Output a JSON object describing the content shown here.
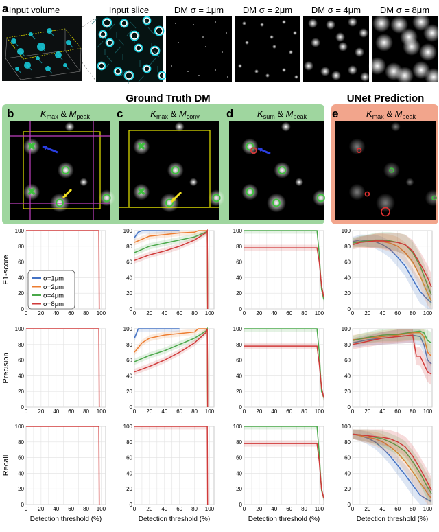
{
  "figure": {
    "label_a": "a",
    "top_labels": [
      "Input volume",
      "Input slice",
      "DM σ = 1μm",
      "DM σ = 2μm",
      "DM σ = 4μm",
      "DM σ = 8μm"
    ],
    "group_gt": "Ground Truth DM",
    "group_unet": "UNet Prediction",
    "colors": {
      "sigma1": "#4472c4",
      "sigma2": "#ed7d31",
      "sigma4": "#4aa84a",
      "sigma8": "#d03a3a",
      "gt_panel_bg": "#9fd69f",
      "unet_panel_bg": "#f2a58c",
      "cyan": "#18d0e0"
    },
    "panels": [
      {
        "letter": "b",
        "k": "K",
        "k_sub": "max",
        "amp": " & ",
        "m": "M",
        "m_sub": "peak"
      },
      {
        "letter": "c",
        "k": "K",
        "k_sub": "max",
        "amp": " & ",
        "m": "M",
        "m_sub": "conv"
      },
      {
        "letter": "d",
        "k": "K",
        "k_sub": "sum",
        "amp": " & ",
        "m": "M",
        "m_sub": "peak"
      },
      {
        "letter": "e",
        "k": "K",
        "k_sub": "max",
        "amp": " & ",
        "m": "M",
        "m_sub": "peak"
      }
    ],
    "row_labels": [
      "F1-score",
      "Precision",
      "Recall"
    ],
    "legend": [
      "σ=1μm",
      "σ=2μm",
      "σ=4μm",
      "σ=8μm"
    ],
    "xlabel": "Detection threshold (%)",
    "x_ticks": [
      0,
      10,
      20,
      30,
      40,
      50,
      60,
      70,
      80,
      90,
      100
    ],
    "y_ticks": [
      0,
      20,
      40,
      60,
      80,
      100
    ]
  },
  "chart_data": [
    {
      "type": "line",
      "row": "F1-score",
      "col": "b",
      "xlim": [
        0,
        106
      ],
      "ylim": [
        0,
        100
      ],
      "xlabel": "Detection threshold (%)",
      "ylabel": "F1-score",
      "series": [
        {
          "name": "σ=8μm",
          "x": [
            0,
            97,
            97.5
          ],
          "y": [
            100,
            100,
            0
          ]
        }
      ]
    },
    {
      "type": "line",
      "row": "F1-score",
      "col": "c",
      "xlim": [
        0,
        106
      ],
      "ylim": [
        0,
        100
      ],
      "xlabel": "Detection threshold (%)",
      "series": [
        {
          "name": "σ=1μm",
          "x": [
            0,
            5,
            10,
            60
          ],
          "y": [
            91,
            98,
            100,
            100
          ]
        },
        {
          "name": "σ=2μm",
          "x": [
            0,
            20,
            40,
            60,
            80,
            85,
            97,
            97.5
          ],
          "y": [
            85,
            93,
            95,
            97,
            98,
            100,
            100,
            0
          ]
        },
        {
          "name": "σ=4μm",
          "x": [
            0,
            20,
            40,
            60,
            80,
            95,
            97,
            97.5
          ],
          "y": [
            72,
            80,
            84,
            88,
            92,
            98,
            100,
            0
          ]
        },
        {
          "name": "σ=8μm",
          "x": [
            0,
            20,
            40,
            60,
            80,
            95,
            97,
            97.5
          ],
          "y": [
            62,
            69,
            74,
            80,
            88,
            97,
            100,
            0
          ]
        }
      ]
    },
    {
      "type": "line",
      "row": "F1-score",
      "col": "d",
      "xlim": [
        0,
        106
      ],
      "ylim": [
        0,
        100
      ],
      "xlabel": "Detection threshold (%)",
      "series": [
        {
          "name": "σ=4μm",
          "x": [
            0,
            97,
            100,
            103,
            106
          ],
          "y": [
            100,
            100,
            70,
            25,
            12
          ]
        },
        {
          "name": "σ=8μm",
          "x": [
            0,
            97,
            100,
            103,
            106
          ],
          "y": [
            78,
            78,
            60,
            30,
            15
          ]
        }
      ]
    },
    {
      "type": "line",
      "row": "F1-score",
      "col": "e",
      "xlim": [
        0,
        106
      ],
      "ylim": [
        0,
        100
      ],
      "xlabel": "Detection threshold (%)",
      "series": [
        {
          "name": "σ=1μm",
          "x": [
            0,
            10,
            20,
            30,
            40,
            50,
            60,
            70,
            80,
            90,
            100,
            105
          ],
          "y": [
            86,
            88,
            87,
            86,
            82,
            76,
            66,
            55,
            38,
            22,
            12,
            8
          ]
        },
        {
          "name": "σ=2μm",
          "x": [
            0,
            10,
            20,
            30,
            40,
            50,
            60,
            70,
            80,
            90,
            100,
            105
          ],
          "y": [
            85,
            86,
            86,
            87,
            86,
            84,
            80,
            72,
            60,
            42,
            20,
            10
          ]
        },
        {
          "name": "σ=4μm",
          "x": [
            0,
            10,
            20,
            30,
            40,
            50,
            60,
            70,
            80,
            90,
            100,
            105
          ],
          "y": [
            84,
            86,
            87,
            88,
            88,
            87,
            85,
            82,
            72,
            55,
            30,
            18
          ]
        },
        {
          "name": "σ=8μm",
          "x": [
            0,
            10,
            20,
            30,
            40,
            50,
            60,
            70,
            80,
            90,
            100,
            105
          ],
          "y": [
            82,
            85,
            86,
            87,
            87,
            86,
            85,
            82,
            74,
            58,
            40,
            28
          ]
        }
      ]
    },
    {
      "type": "line",
      "row": "Precision",
      "col": "b",
      "xlim": [
        0,
        106
      ],
      "ylim": [
        0,
        100
      ],
      "xlabel": "Detection threshold (%)",
      "ylabel": "Precision",
      "series": [
        {
          "name": "σ=8μm",
          "x": [
            0,
            97,
            97.5
          ],
          "y": [
            100,
            100,
            0
          ]
        }
      ]
    },
    {
      "type": "line",
      "row": "Precision",
      "col": "c",
      "xlim": [
        0,
        106
      ],
      "ylim": [
        0,
        100
      ],
      "xlabel": "Detection threshold (%)",
      "series": [
        {
          "name": "σ=1μm",
          "x": [
            0,
            3,
            5,
            60
          ],
          "y": [
            88,
            95,
            100,
            100
          ]
        },
        {
          "name": "σ=2μm",
          "x": [
            0,
            10,
            20,
            40,
            60,
            80,
            85,
            97,
            97.5
          ],
          "y": [
            70,
            82,
            88,
            92,
            94,
            96,
            100,
            100,
            0
          ]
        },
        {
          "name": "σ=4μm",
          "x": [
            0,
            20,
            40,
            60,
            80,
            95,
            97,
            97.5
          ],
          "y": [
            58,
            66,
            72,
            80,
            88,
            97,
            100,
            0
          ]
        },
        {
          "name": "σ=8μm",
          "x": [
            0,
            20,
            40,
            60,
            80,
            95,
            97,
            97.5
          ],
          "y": [
            45,
            52,
            60,
            70,
            82,
            95,
            100,
            0
          ]
        }
      ]
    },
    {
      "type": "line",
      "row": "Precision",
      "col": "d",
      "xlim": [
        0,
        106
      ],
      "ylim": [
        0,
        100
      ],
      "xlabel": "Detection threshold (%)",
      "series": [
        {
          "name": "σ=4μm",
          "x": [
            0,
            97,
            100,
            103,
            106
          ],
          "y": [
            100,
            100,
            70,
            20,
            12
          ]
        },
        {
          "name": "σ=8μm",
          "x": [
            0,
            97,
            100,
            103,
            106
          ],
          "y": [
            78,
            78,
            55,
            25,
            12
          ]
        }
      ]
    },
    {
      "type": "line",
      "row": "Precision",
      "col": "e",
      "xlim": [
        0,
        106
      ],
      "ylim": [
        0,
        100
      ],
      "xlabel": "Detection threshold (%)",
      "series": [
        {
          "name": "σ=1μm",
          "x": [
            0,
            20,
            40,
            60,
            80,
            90,
            95,
            100,
            105
          ],
          "y": [
            82,
            86,
            88,
            90,
            92,
            90,
            80,
            60,
            55
          ]
        },
        {
          "name": "σ=2μm",
          "x": [
            0,
            20,
            40,
            60,
            80,
            90,
            95,
            100,
            105
          ],
          "y": [
            86,
            88,
            90,
            92,
            95,
            95,
            90,
            70,
            65
          ]
        },
        {
          "name": "σ=4μm",
          "x": [
            0,
            20,
            40,
            60,
            80,
            90,
            95,
            100,
            105
          ],
          "y": [
            85,
            89,
            92,
            93,
            96,
            97,
            95,
            85,
            82
          ]
        },
        {
          "name": "σ=8μm",
          "x": [
            0,
            20,
            40,
            60,
            80,
            85,
            90,
            100,
            105
          ],
          "y": [
            80,
            84,
            88,
            90,
            92,
            65,
            65,
            45,
            42
          ]
        }
      ]
    },
    {
      "type": "line",
      "row": "Recall",
      "col": "b",
      "xlim": [
        0,
        106
      ],
      "ylim": [
        0,
        100
      ],
      "xlabel": "Detection threshold (%)",
      "ylabel": "Recall",
      "series": [
        {
          "name": "σ=8μm",
          "x": [
            0,
            97,
            97.5
          ],
          "y": [
            100,
            100,
            0
          ]
        }
      ]
    },
    {
      "type": "line",
      "row": "Recall",
      "col": "c",
      "xlim": [
        0,
        106
      ],
      "ylim": [
        0,
        100
      ],
      "xlabel": "Detection threshold (%)",
      "series": [
        {
          "name": "σ=8μm",
          "x": [
            0,
            97,
            97.5
          ],
          "y": [
            100,
            100,
            0
          ]
        }
      ]
    },
    {
      "type": "line",
      "row": "Recall",
      "col": "d",
      "xlim": [
        0,
        106
      ],
      "ylim": [
        0,
        100
      ],
      "xlabel": "Detection threshold (%)",
      "series": [
        {
          "name": "σ=4μm",
          "x": [
            0,
            97,
            100,
            103,
            106
          ],
          "y": [
            100,
            100,
            65,
            18,
            8
          ]
        },
        {
          "name": "σ=8μm",
          "x": [
            0,
            97,
            100,
            103,
            106
          ],
          "y": [
            78,
            78,
            55,
            20,
            8
          ]
        }
      ]
    },
    {
      "type": "line",
      "row": "Recall",
      "col": "e",
      "xlim": [
        0,
        106
      ],
      "ylim": [
        0,
        100
      ],
      "xlabel": "Detection threshold (%)",
      "series": [
        {
          "name": "σ=1μm",
          "x": [
            0,
            10,
            20,
            30,
            40,
            50,
            60,
            70,
            80,
            90,
            100,
            105
          ],
          "y": [
            90,
            88,
            85,
            80,
            72,
            62,
            50,
            38,
            25,
            12,
            6,
            4
          ]
        },
        {
          "name": "σ=2μm",
          "x": [
            0,
            10,
            20,
            30,
            40,
            50,
            60,
            70,
            80,
            90,
            100,
            105
          ],
          "y": [
            90,
            88,
            86,
            84,
            80,
            74,
            66,
            55,
            42,
            28,
            14,
            8
          ]
        },
        {
          "name": "σ=4μm",
          "x": [
            0,
            10,
            20,
            30,
            40,
            50,
            60,
            70,
            80,
            90,
            100,
            105
          ],
          "y": [
            90,
            89,
            88,
            86,
            84,
            80,
            75,
            68,
            55,
            40,
            22,
            14
          ]
        },
        {
          "name": "σ=8μm",
          "x": [
            0,
            10,
            20,
            30,
            40,
            50,
            60,
            70,
            80,
            90,
            100,
            105
          ],
          "y": [
            90,
            89,
            88,
            87,
            86,
            84,
            80,
            74,
            62,
            46,
            28,
            18
          ]
        }
      ]
    }
  ]
}
